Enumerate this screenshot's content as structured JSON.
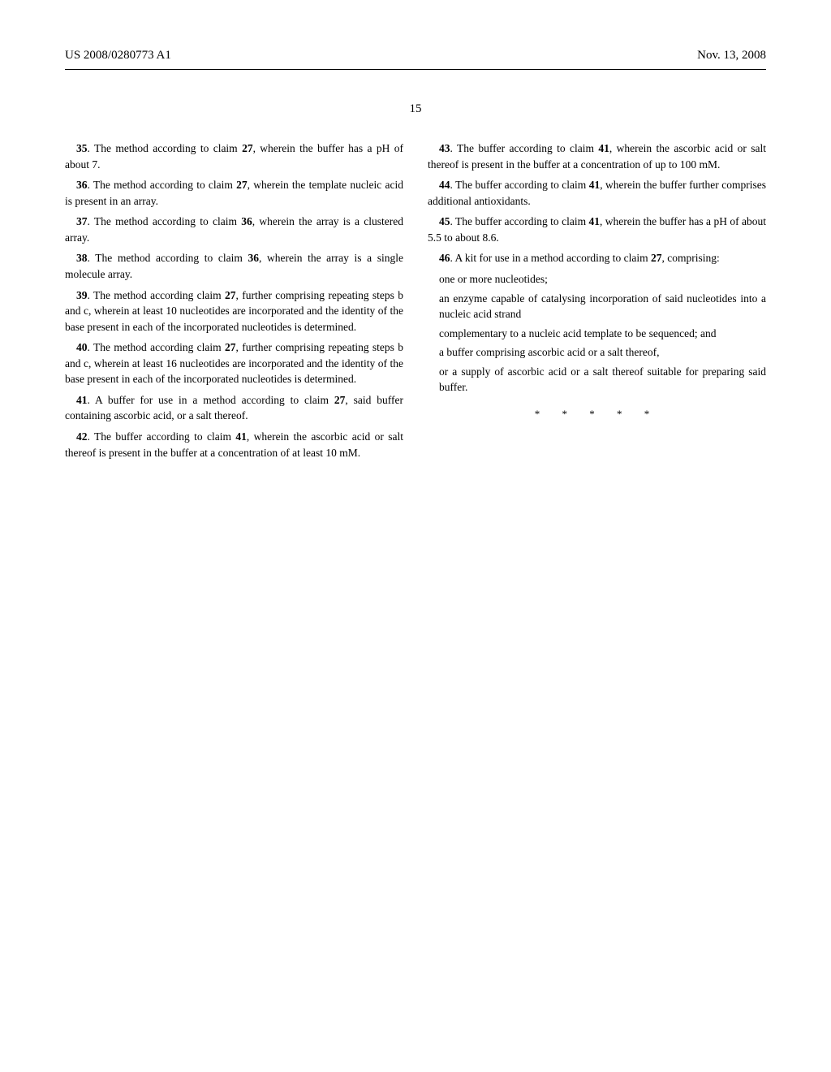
{
  "header": {
    "left": "US 2008/0280773 A1",
    "right": "Nov. 13, 2008"
  },
  "page_number": "15",
  "left_column": {
    "c35": {
      "num": "35",
      "text": ". The method according to claim ",
      "ref": "27",
      "tail": ", wherein the buffer has a pH of about 7."
    },
    "c36": {
      "num": "36",
      "text": ". The method according to claim ",
      "ref": "27",
      "tail": ", wherein the template nucleic acid is present in an array."
    },
    "c37": {
      "num": "37",
      "text": ". The method according to claim ",
      "ref": "36",
      "tail": ", wherein the array is a clustered array."
    },
    "c38": {
      "num": "38",
      "text": ". The method according to claim ",
      "ref": "36",
      "tail": ", wherein the array is a single molecule array."
    },
    "c39": {
      "num": "39",
      "text": ". The method according claim ",
      "ref": "27",
      "tail": ", further comprising repeating steps b and c, wherein at least 10 nucleotides are incorporated and the identity of the base present in each of the incorporated nucleotides is determined."
    },
    "c40": {
      "num": "40",
      "text": ". The method according claim ",
      "ref": "27",
      "tail": ", further comprising repeating steps b and c, wherein at least 16 nucleotides are incorporated and the identity of the base present in each of the incorporated nucleotides is determined."
    },
    "c41": {
      "num": "41",
      "text": ". A buffer for use in a method according to claim ",
      "ref": "27",
      "tail": ", said buffer containing ascorbic acid, or a salt thereof."
    },
    "c42": {
      "num": "42",
      "text": ". The buffer according to claim ",
      "ref": "41",
      "tail": ", wherein the ascorbic acid or salt thereof is present in the buffer at a concentration of at least 10 mM."
    }
  },
  "right_column": {
    "c43": {
      "num": "43",
      "text": ". The buffer according to claim ",
      "ref": "41",
      "tail": ", wherein the ascorbic acid or salt thereof is present in the buffer at a concentration of up to 100 mM."
    },
    "c44": {
      "num": "44",
      "text": ". The buffer according to claim ",
      "ref": "41",
      "tail": ", wherein the buffer further comprises additional antioxidants."
    },
    "c45": {
      "num": "45",
      "text": ". The buffer according to claim ",
      "ref": "41",
      "tail": ", wherein the buffer has a pH of about 5.5 to about 8.6."
    },
    "c46": {
      "num": "46",
      "text": ". A kit for use in a method according to claim ",
      "ref": "27",
      "tail": ", comprising:"
    },
    "items": {
      "a": "one or more nucleotides;",
      "b": "an enzyme capable of catalysing incorporation of said nucleotides into a nucleic acid strand",
      "c": "complementary to a nucleic acid template to be sequenced; and",
      "d": "a buffer comprising ascorbic acid or a salt thereof,",
      "e": "or a supply of ascorbic acid or a salt thereof suitable for preparing said buffer."
    },
    "stars": "* * * * *"
  }
}
